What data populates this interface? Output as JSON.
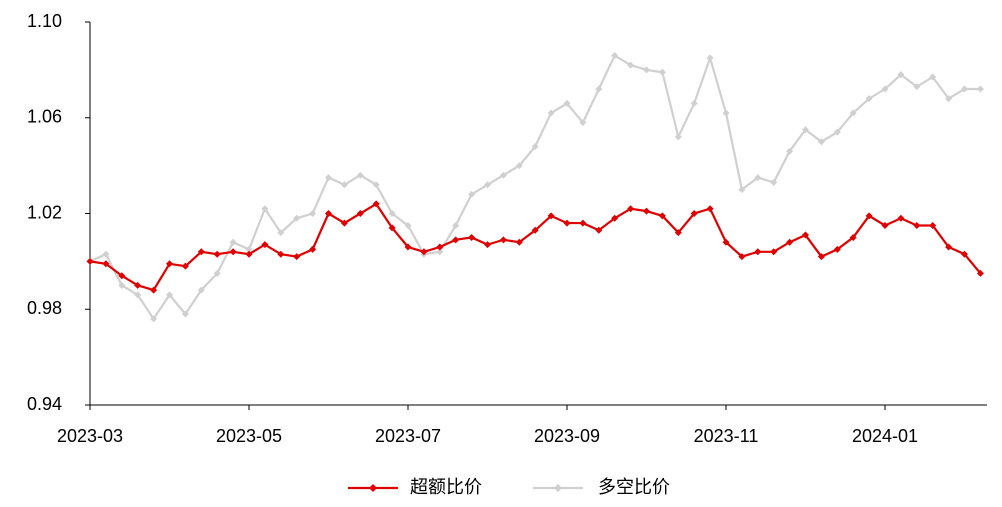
{
  "chart_data": {
    "type": "line",
    "categories": [
      "2023-03",
      null,
      null,
      null,
      null,
      null,
      null,
      null,
      null,
      null,
      "2023-05",
      null,
      null,
      null,
      null,
      null,
      null,
      null,
      null,
      null,
      "2023-07",
      null,
      null,
      null,
      null,
      null,
      null,
      null,
      null,
      null,
      "2023-09",
      null,
      null,
      null,
      null,
      null,
      null,
      null,
      null,
      null,
      "2023-11",
      null,
      null,
      null,
      null,
      null,
      null,
      null,
      null,
      null,
      "2024-01",
      null,
      null,
      null,
      null,
      null,
      null
    ],
    "series": [
      {
        "name": "超额比价",
        "color": "#e00000",
        "values": [
          1.0,
          0.999,
          0.994,
          0.99,
          0.988,
          0.999,
          0.998,
          1.004,
          1.003,
          1.004,
          1.003,
          1.007,
          1.003,
          1.002,
          1.005,
          1.02,
          1.016,
          1.02,
          1.024,
          1.014,
          1.006,
          1.004,
          1.006,
          1.009,
          1.01,
          1.007,
          1.009,
          1.008,
          1.013,
          1.019,
          1.016,
          1.016,
          1.013,
          1.018,
          1.022,
          1.021,
          1.019,
          1.012,
          1.02,
          1.022,
          1.008,
          1.002,
          1.004,
          1.004,
          1.008,
          1.011,
          1.002,
          1.005,
          1.01,
          1.019,
          1.015,
          1.018,
          1.015,
          1.015,
          1.006,
          1.003,
          0.995
        ]
      },
      {
        "name": "多空比价",
        "color": "#d0d0d0",
        "values": [
          1.0,
          1.003,
          0.99,
          0.986,
          0.976,
          0.986,
          0.978,
          0.988,
          0.995,
          1.008,
          1.005,
          1.022,
          1.012,
          1.018,
          1.02,
          1.035,
          1.032,
          1.036,
          1.032,
          1.02,
          1.015,
          1.003,
          1.004,
          1.015,
          1.028,
          1.032,
          1.036,
          1.04,
          1.048,
          1.062,
          1.066,
          1.058,
          1.072,
          1.086,
          1.082,
          1.08,
          1.079,
          1.052,
          1.066,
          1.085,
          1.062,
          1.03,
          1.035,
          1.033,
          1.046,
          1.055,
          1.05,
          1.054,
          1.062,
          1.068,
          1.072,
          1.078,
          1.073,
          1.077,
          1.068,
          1.072,
          1.072
        ]
      }
    ],
    "ylim": [
      0.94,
      1.1
    ],
    "yticks": [
      0.94,
      0.98,
      1.02,
      1.06,
      {
        "value": 1.1,
        "label": "1.10"
      }
    ],
    "legend": "bottom"
  }
}
